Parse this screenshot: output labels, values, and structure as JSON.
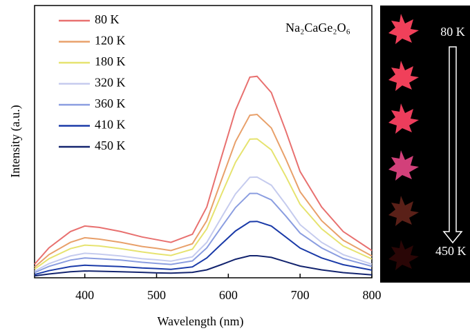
{
  "chart_data": {
    "type": "line",
    "xlabel": "Wavelength (nm)",
    "ylabel": "Intensity (a.u.)",
    "annotation": "Na₂CaGe₂O₆",
    "x": [
      330,
      350,
      380,
      400,
      420,
      450,
      480,
      500,
      520,
      550,
      570,
      590,
      610,
      630,
      640,
      660,
      680,
      700,
      730,
      760,
      800
    ],
    "series": [
      {
        "name": "80 K",
        "color": "#e8706f",
        "values": [
          5,
          11,
          17,
          19,
          18.5,
          17,
          15,
          14,
          13,
          16,
          26,
          44,
          61.5,
          73.7,
          74,
          68,
          54,
          39,
          26,
          17,
          10
        ]
      },
      {
        "name": "120 K",
        "color": "#e8a06a",
        "values": [
          3.9,
          8.5,
          13,
          14.7,
          14.2,
          13,
          11.5,
          10.8,
          10,
          12.5,
          21,
          35.6,
          50,
          59.7,
          60,
          55,
          43.7,
          31.6,
          21,
          13.8,
          8
        ]
      },
      {
        "name": "180 K",
        "color": "#e6e36f",
        "values": [
          3.2,
          7,
          10.7,
          12,
          11.7,
          10.7,
          9.5,
          8.8,
          8.2,
          10.5,
          18,
          30.4,
          42.4,
          50.9,
          51,
          47,
          37.3,
          27,
          18,
          11.7,
          6.9
        ]
      },
      {
        "name": "320 K",
        "color": "#c5cbee",
        "values": [
          2.4,
          5.2,
          8,
          9,
          8.7,
          8,
          7,
          6.6,
          6.1,
          7.7,
          13,
          22,
          30.8,
          36.9,
          37,
          34,
          27,
          19.5,
          13,
          8.5,
          5
        ]
      },
      {
        "name": "360 K",
        "color": "#8a9de0",
        "values": [
          1.9,
          4.2,
          6.5,
          7.3,
          7,
          6.5,
          5.7,
          5.3,
          4.9,
          6.2,
          11,
          18.5,
          25.8,
          31,
          31,
          28.6,
          22.7,
          16.4,
          11,
          7.1,
          4.2
        ]
      },
      {
        "name": "410 K",
        "color": "#1a3aa8",
        "values": [
          1.2,
          2.6,
          4.1,
          4.6,
          4.4,
          4.1,
          3.6,
          3.4,
          3.1,
          4,
          7.3,
          12.3,
          17.2,
          20.6,
          20.7,
          19,
          15,
          10.9,
          7.3,
          4.8,
          2.8
        ]
      },
      {
        "name": "450 K",
        "color": "#12236e",
        "values": [
          0.7,
          1.4,
          2.2,
          2.5,
          2.4,
          2.2,
          2,
          1.8,
          1.7,
          2,
          2.9,
          4.8,
          6.8,
          8.1,
          8.1,
          7.5,
          5.9,
          4.3,
          2.9,
          1.9,
          1.1
        ]
      }
    ],
    "xlim": [
      330,
      800
    ],
    "xticks": [
      400,
      500,
      600,
      700,
      800
    ],
    "ylim": [
      0,
      100
    ]
  },
  "inset": {
    "top_label": "80 K",
    "bottom_label": "450 K"
  }
}
